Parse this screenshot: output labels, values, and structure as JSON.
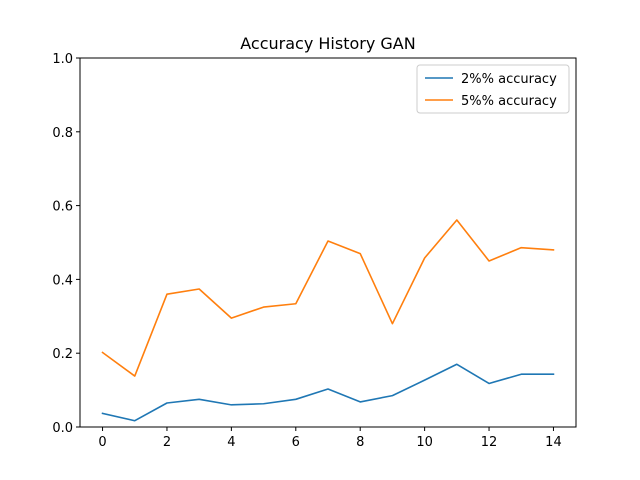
{
  "chart_data": {
    "type": "line",
    "title": "Accuracy History GAN",
    "xlabel": "",
    "ylabel": "",
    "x": [
      0,
      1,
      2,
      3,
      4,
      5,
      6,
      7,
      8,
      9,
      10,
      11,
      12,
      13,
      14
    ],
    "xlim": [
      -0.7,
      14.7
    ],
    "ylim": [
      0,
      1.0
    ],
    "xticks": [
      0,
      2,
      4,
      6,
      8,
      10,
      12,
      14
    ],
    "yticks": [
      0.0,
      0.2,
      0.4,
      0.6,
      0.8,
      1.0
    ],
    "xtick_labels": [
      "0",
      "2",
      "4",
      "6",
      "8",
      "10",
      "12",
      "14"
    ],
    "ytick_labels": [
      "0.0",
      "0.2",
      "0.4",
      "0.6",
      "0.8",
      "1.0"
    ],
    "grid": false,
    "legend_position": "top-right",
    "series": [
      {
        "name": "2%% accuracy",
        "color": "#1f77b4",
        "values": [
          0.037,
          0.017,
          0.065,
          0.075,
          0.06,
          0.063,
          0.075,
          0.103,
          0.068,
          0.085,
          0.127,
          0.17,
          0.118,
          0.143,
          0.143
        ]
      },
      {
        "name": "5%% accuracy",
        "color": "#ff7f0e",
        "values": [
          0.202,
          0.138,
          0.36,
          0.374,
          0.295,
          0.325,
          0.334,
          0.504,
          0.47,
          0.28,
          0.458,
          0.561,
          0.45,
          0.486,
          0.48
        ]
      }
    ]
  }
}
